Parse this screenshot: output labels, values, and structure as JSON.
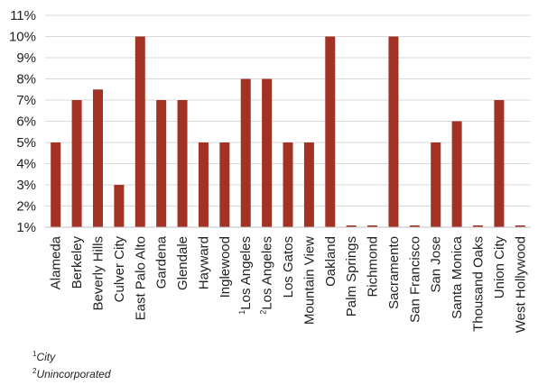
{
  "chart_data": {
    "type": "bar",
    "title": "",
    "xlabel": "",
    "ylabel": "",
    "categories": [
      {
        "label": "Alameda",
        "sup": ""
      },
      {
        "label": "Berkeley",
        "sup": ""
      },
      {
        "label": "Beverly Hills",
        "sup": ""
      },
      {
        "label": "Culver City",
        "sup": ""
      },
      {
        "label": "East Palo Alto",
        "sup": ""
      },
      {
        "label": "Gardena",
        "sup": ""
      },
      {
        "label": "Glendale",
        "sup": ""
      },
      {
        "label": "Hayward",
        "sup": ""
      },
      {
        "label": "Inglewood",
        "sup": ""
      },
      {
        "label": "Los Angeles",
        "sup": "1"
      },
      {
        "label": "Los Angeles",
        "sup": "2"
      },
      {
        "label": "Los Gatos",
        "sup": ""
      },
      {
        "label": "Mountain View",
        "sup": ""
      },
      {
        "label": "Oakland",
        "sup": ""
      },
      {
        "label": "Palm Springs",
        "sup": ""
      },
      {
        "label": "Richmond",
        "sup": ""
      },
      {
        "label": "Sacramento",
        "sup": ""
      },
      {
        "label": "San Francisco",
        "sup": ""
      },
      {
        "label": "San Jose",
        "sup": ""
      },
      {
        "label": "Santa Monica",
        "sup": ""
      },
      {
        "label": "Thousand Oaks",
        "sup": ""
      },
      {
        "label": "Union City",
        "sup": ""
      },
      {
        "label": "West Hollywood",
        "sup": ""
      }
    ],
    "values": [
      5,
      7,
      7.5,
      3,
      10,
      7,
      7,
      5,
      5,
      8,
      8,
      5,
      5,
      10,
      1,
      1,
      10,
      1,
      5,
      6,
      1,
      7,
      1
    ],
    "ylim": [
      1,
      11
    ],
    "yticks": [
      "1%",
      "2%",
      "3%",
      "4%",
      "5%",
      "6%",
      "7%",
      "8%",
      "9%",
      "10%",
      "11%"
    ],
    "grid": true,
    "bar_color": "#a23224",
    "grid_color": "#d9d9d9",
    "axis_color": "#bfbfbf"
  },
  "footnotes": [
    {
      "sup": "1",
      "text": "City"
    },
    {
      "sup": "2",
      "text": "Unincorporated"
    }
  ]
}
